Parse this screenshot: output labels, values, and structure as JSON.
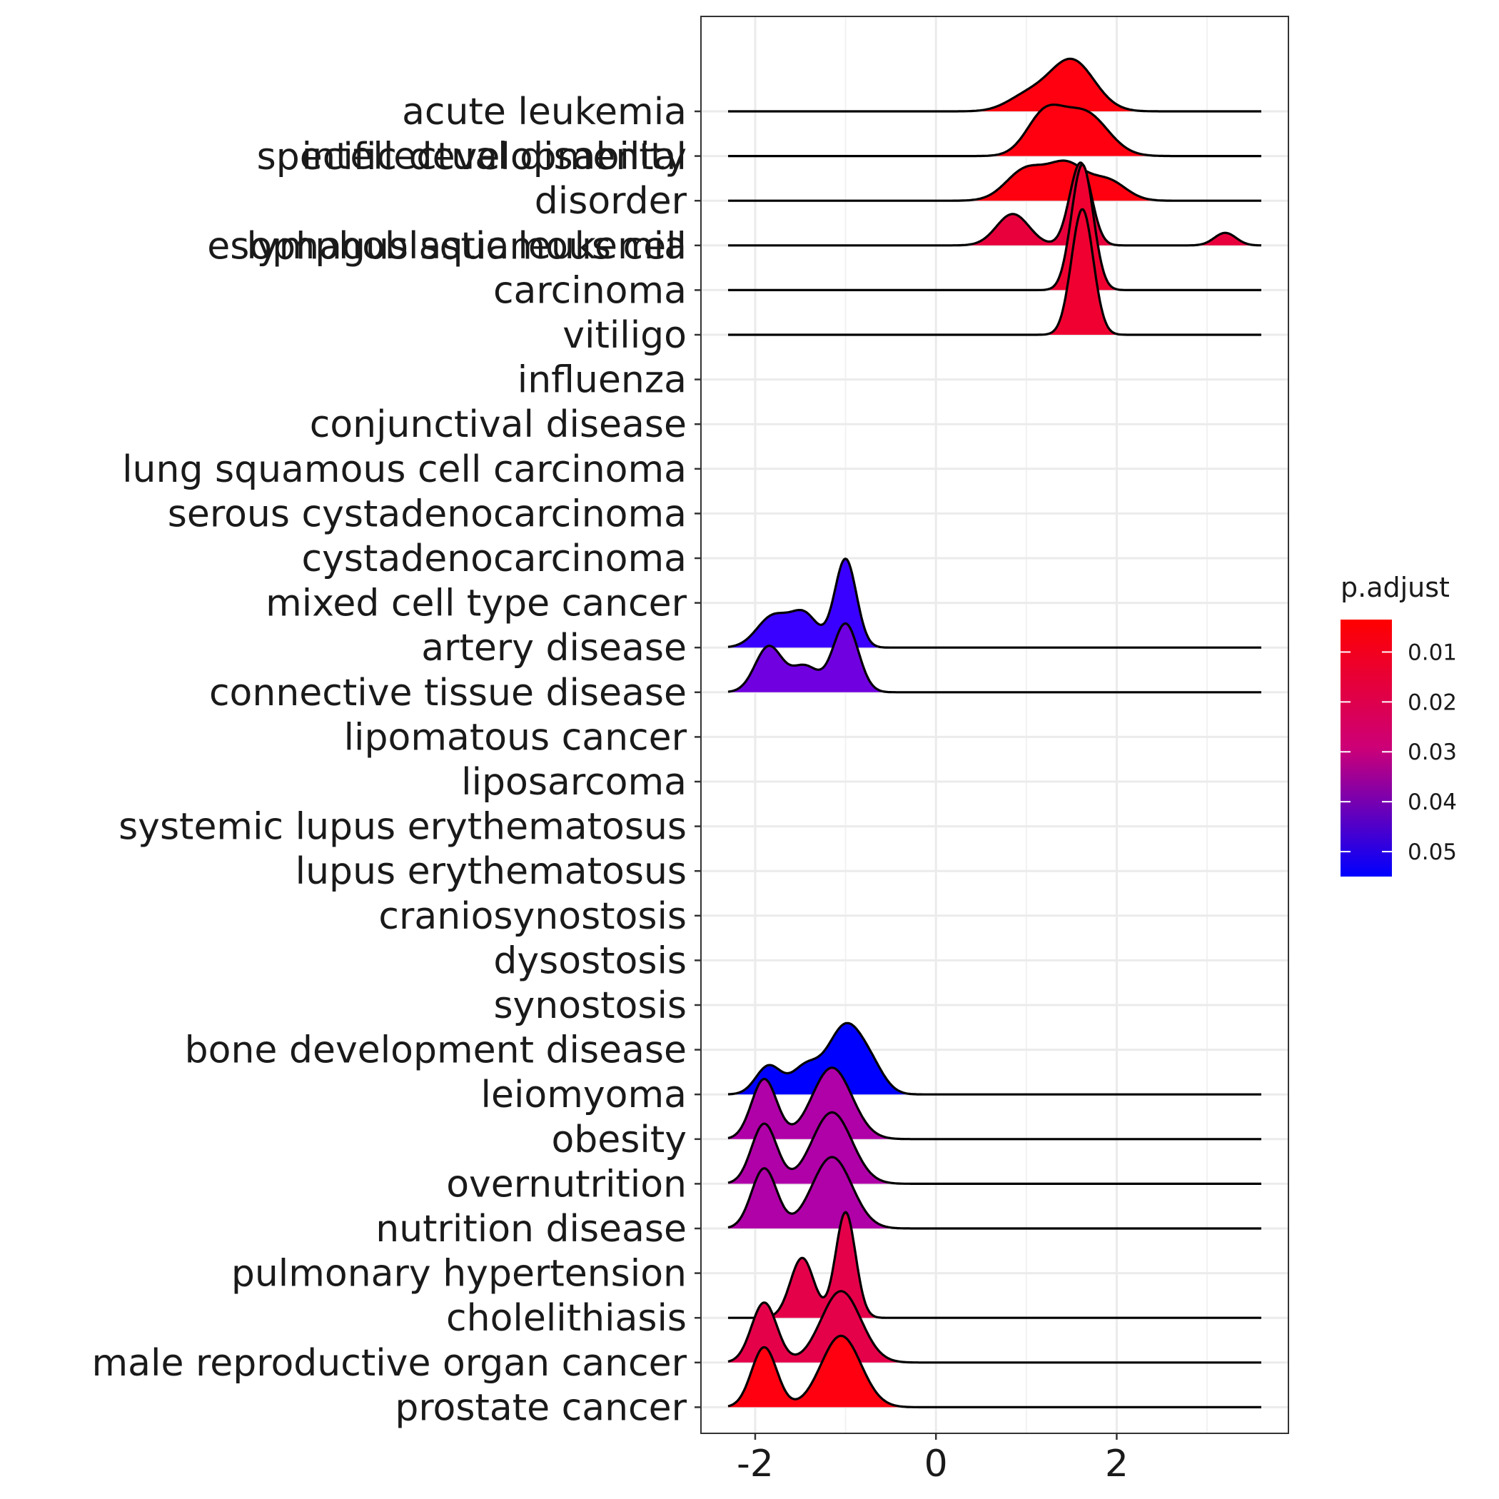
{
  "chart_data": {
    "type": "ridgeline",
    "xlim": [
      -2.6,
      3.9
    ],
    "x_ticks": [
      -2,
      0,
      2
    ],
    "x_tick_labels": [
      "-2",
      "0",
      "2"
    ],
    "grid": true,
    "legend": {
      "title": "p.adjust",
      "placement": "right",
      "low_color": "#0000FF",
      "high_color": "#FF0000",
      "ticks": [
        0.01,
        0.02,
        0.03,
        0.04,
        0.05
      ],
      "tick_labels": [
        "0.01",
        "0.02",
        "0.03",
        "0.04",
        "0.05"
      ],
      "range": [
        0.0035,
        0.055
      ]
    },
    "categories": [
      {
        "label": [
          "acute leukemia"
        ],
        "p_adjust": 0.004,
        "fill": "#FF0010",
        "range": [
          -2.3,
          3.6
        ],
        "components": [
          [
            1.0,
            0.22,
            0.25
          ],
          [
            1.5,
            0.25,
            0.9
          ]
        ]
      },
      {
        "label": [
          "intellectual disability"
        ],
        "p_adjust": 0.004,
        "fill": "#FF0010",
        "range": [
          -2.3,
          3.6
        ],
        "components": [
          [
            1.2,
            0.2,
            0.7
          ],
          [
            1.65,
            0.25,
            0.75
          ]
        ]
      },
      {
        "label": [
          "specific developmental",
          "disorder"
        ],
        "p_adjust": 0.004,
        "fill": "#FF0010",
        "range": [
          -2.3,
          3.6
        ],
        "components": [
          [
            1.0,
            0.22,
            0.55
          ],
          [
            1.45,
            0.2,
            0.6
          ],
          [
            1.9,
            0.2,
            0.35
          ]
        ]
      },
      {
        "label": [
          "lymphoblastic leukemia"
        ],
        "p_adjust": 0.015,
        "fill": "#E8003C",
        "range": [
          -2.3,
          3.6
        ],
        "components": [
          [
            0.85,
            0.18,
            0.55
          ],
          [
            1.6,
            0.12,
            1.45
          ],
          [
            3.2,
            0.12,
            0.22
          ]
        ]
      },
      {
        "label": [
          "esophagus squamous cell",
          "carcinoma"
        ],
        "p_adjust": 0.012,
        "fill": "#F00030",
        "range": [
          -2.3,
          3.6
        ],
        "components": [
          [
            1.62,
            0.12,
            2.2
          ]
        ]
      },
      {
        "label": [
          "vitiligo"
        ],
        "p_adjust": 0.012,
        "fill": "#F00030",
        "range": [
          -2.3,
          3.6
        ],
        "components": [
          [
            1.62,
            0.12,
            2.2
          ]
        ]
      },
      {
        "label": [
          "influenza"
        ]
      },
      {
        "label": [
          "conjunctival disease"
        ]
      },
      {
        "label": [
          "lung squamous cell carcinoma"
        ]
      },
      {
        "label": [
          "serous cystadenocarcinoma"
        ]
      },
      {
        "label": [
          "cystadenocarcinoma"
        ]
      },
      {
        "label": [
          "mixed cell type cancer"
        ]
      },
      {
        "label": [
          "artery disease"
        ],
        "p_adjust": 0.05,
        "fill": "#3A00FF",
        "range": [
          -2.3,
          3.6
        ],
        "components": [
          [
            -1.8,
            0.18,
            0.55
          ],
          [
            -1.45,
            0.15,
            0.55
          ],
          [
            -1.0,
            0.12,
            1.55
          ]
        ]
      },
      {
        "label": [
          "connective tissue disease"
        ],
        "p_adjust": 0.046,
        "fill": "#7000E0",
        "range": [
          -2.3,
          3.6
        ],
        "components": [
          [
            -1.85,
            0.15,
            0.8
          ],
          [
            -1.45,
            0.15,
            0.45
          ],
          [
            -1.0,
            0.14,
            1.2
          ]
        ]
      },
      {
        "label": [
          "lipomatous cancer"
        ]
      },
      {
        "label": [
          "liposarcoma"
        ]
      },
      {
        "label": [
          "systemic lupus erythematosus"
        ]
      },
      {
        "label": [
          "lupus erythematosus"
        ]
      },
      {
        "label": [
          "craniosynostosis"
        ]
      },
      {
        "label": [
          "dysostosis"
        ]
      },
      {
        "label": [
          "synostosis"
        ]
      },
      {
        "label": [
          "bone development disease"
        ]
      },
      {
        "label": [
          "leiomyoma"
        ],
        "p_adjust": 0.054,
        "fill": "#0000FF",
        "range": [
          -2.3,
          3.6
        ],
        "components": [
          [
            -1.85,
            0.14,
            0.5
          ],
          [
            -1.45,
            0.15,
            0.45
          ],
          [
            -1.0,
            0.2,
            1.2
          ],
          [
            -0.7,
            0.15,
            0.3
          ]
        ]
      },
      {
        "label": [
          "obesity"
        ],
        "p_adjust": 0.036,
        "fill": "#B000A8",
        "range": [
          -2.3,
          3.6
        ],
        "components": [
          [
            -1.9,
            0.14,
            1.05
          ],
          [
            -1.15,
            0.22,
            1.25
          ]
        ]
      },
      {
        "label": [
          "overnutrition"
        ],
        "p_adjust": 0.036,
        "fill": "#B000A8",
        "range": [
          -2.3,
          3.6
        ],
        "components": [
          [
            -1.9,
            0.14,
            1.05
          ],
          [
            -1.15,
            0.22,
            1.25
          ]
        ]
      },
      {
        "label": [
          "nutrition disease"
        ],
        "p_adjust": 0.036,
        "fill": "#B000A8",
        "range": [
          -2.3,
          3.6
        ],
        "components": [
          [
            -1.9,
            0.14,
            1.05
          ],
          [
            -1.15,
            0.22,
            1.25
          ]
        ]
      },
      {
        "label": [
          "pulmonary hypertension"
        ]
      },
      {
        "label": [
          "cholelithiasis"
        ],
        "p_adjust": 0.016,
        "fill": "#E5004A",
        "range": [
          -2.3,
          3.6
        ],
        "components": [
          [
            -1.48,
            0.13,
            1.05
          ],
          [
            -1.0,
            0.11,
            1.85
          ]
        ]
      },
      {
        "label": [
          "male reproductive organ cancer"
        ],
        "p_adjust": 0.016,
        "fill": "#E5004A",
        "range": [
          -2.3,
          3.6
        ],
        "components": [
          [
            -1.9,
            0.14,
            1.05
          ],
          [
            -1.05,
            0.22,
            1.25
          ]
        ]
      },
      {
        "label": [
          "prostate cancer"
        ],
        "p_adjust": 0.004,
        "fill": "#FF0010",
        "range": [
          -2.3,
          3.6
        ],
        "components": [
          [
            -1.9,
            0.14,
            1.05
          ],
          [
            -1.05,
            0.22,
            1.25
          ]
        ]
      }
    ]
  }
}
